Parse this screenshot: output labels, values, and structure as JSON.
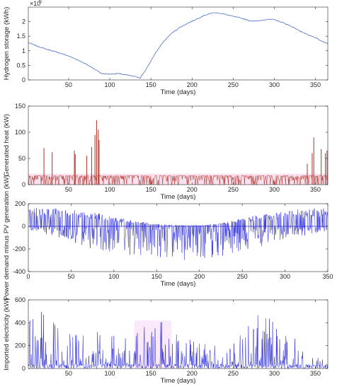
{
  "chart_data": [
    {
      "type": "line",
      "xlabel": "Time (days)",
      "ylabel": "Hydrogen storage (kWh)",
      "y_multiplier_label": "×10",
      "y_multiplier_exp": "5",
      "xlim": [
        1,
        365
      ],
      "ylim": [
        0,
        2.5
      ],
      "xticks": [
        "50",
        "100",
        "150",
        "200",
        "250",
        "300",
        "350"
      ],
      "yticks": [
        "0",
        "0.5",
        "1",
        "1.5",
        "2"
      ],
      "grid": false,
      "color": "#4a6fc4",
      "series": [
        {
          "x": [
            1,
            10,
            20,
            30,
            40,
            50,
            60,
            70,
            80,
            90,
            100,
            110,
            120,
            130,
            137,
            145,
            155,
            165,
            175,
            185,
            195,
            205,
            215,
            225,
            232,
            240,
            250,
            260,
            270,
            280,
            290,
            300,
            310,
            320,
            330,
            340,
            350,
            358,
            365
          ],
          "y": [
            1.28,
            1.18,
            1.08,
            1.0,
            0.92,
            0.82,
            0.7,
            0.56,
            0.4,
            0.22,
            0.2,
            0.22,
            0.17,
            0.12,
            0.07,
            0.4,
            0.9,
            1.3,
            1.6,
            1.8,
            1.95,
            2.08,
            2.22,
            2.3,
            2.3,
            2.25,
            2.18,
            2.12,
            2.03,
            2.02,
            2.08,
            2.07,
            1.97,
            1.85,
            1.7,
            1.55,
            1.45,
            1.32,
            1.25
          ]
        }
      ]
    },
    {
      "type": "line",
      "xlabel": "Time (days)",
      "ylabel": "Generated heat (kW)",
      "xlim": [
        1,
        365
      ],
      "ylim": [
        0,
        150
      ],
      "xticks": [
        "50",
        "100",
        "150",
        "200",
        "250",
        "300",
        "350"
      ],
      "yticks": [
        "0",
        "50",
        "100",
        "150"
      ],
      "grid": false,
      "color": "#b4453b",
      "baseline_level": 17,
      "spikes": [
        {
          "x": 20,
          "y": 70
        },
        {
          "x": 30,
          "y": 62
        },
        {
          "x": 57,
          "y": 65
        },
        {
          "x": 58,
          "y": 58
        },
        {
          "x": 72,
          "y": 55
        },
        {
          "x": 78,
          "y": 72
        },
        {
          "x": 82,
          "y": 95
        },
        {
          "x": 84,
          "y": 123
        },
        {
          "x": 86,
          "y": 105
        },
        {
          "x": 87,
          "y": 85
        },
        {
          "x": 340,
          "y": 40
        },
        {
          "x": 346,
          "y": 60
        },
        {
          "x": 348,
          "y": 90
        },
        {
          "x": 357,
          "y": 68
        },
        {
          "x": 362,
          "y": 60
        },
        {
          "x": 364,
          "y": 65
        }
      ]
    },
    {
      "type": "line",
      "xlabel": "Time (days)",
      "ylabel": "Power demand minus PV generation (kW)",
      "xlim": [
        0,
        350
      ],
      "ylim": [
        -400,
        200
      ],
      "xticks": [
        "0",
        "50",
        "100",
        "150",
        "200",
        "250",
        "300",
        "350"
      ],
      "yticks": [
        "-400",
        "-200",
        "0",
        "200"
      ],
      "grid": false,
      "color": "#2626d8",
      "envelope": {
        "x": [
          0,
          25,
          50,
          75,
          100,
          125,
          150,
          175,
          200,
          225,
          250,
          275,
          300,
          325,
          350
        ],
        "max": [
          170,
          160,
          150,
          130,
          80,
          50,
          20,
          10,
          10,
          30,
          70,
          110,
          140,
          155,
          165
        ],
        "min": [
          -40,
          -80,
          -140,
          -200,
          -230,
          -260,
          -280,
          -300,
          -290,
          -270,
          -220,
          -170,
          -120,
          -80,
          -40
        ]
      }
    },
    {
      "type": "line",
      "xlabel": "Time (days)",
      "ylabel": "Imported electricity (kW)",
      "xlim": [
        1,
        365
      ],
      "ylim": [
        0,
        600
      ],
      "xticks": [
        "50",
        "100",
        "150",
        "200",
        "250",
        "300",
        "350"
      ],
      "yticks": [
        "0",
        "200",
        "400",
        "600"
      ],
      "grid": false,
      "color": "#2626d8",
      "envelope": {
        "x": [
          1,
          15,
          30,
          50,
          70,
          90,
          100,
          120,
          140,
          160,
          175,
          190,
          210,
          230,
          250,
          270,
          285,
          300,
          320,
          340,
          365
        ],
        "max": [
          480,
          520,
          420,
          300,
          320,
          350,
          400,
          300,
          420,
          420,
          380,
          250,
          260,
          200,
          220,
          480,
          460,
          480,
          350,
          120,
          80
        ]
      }
    }
  ]
}
